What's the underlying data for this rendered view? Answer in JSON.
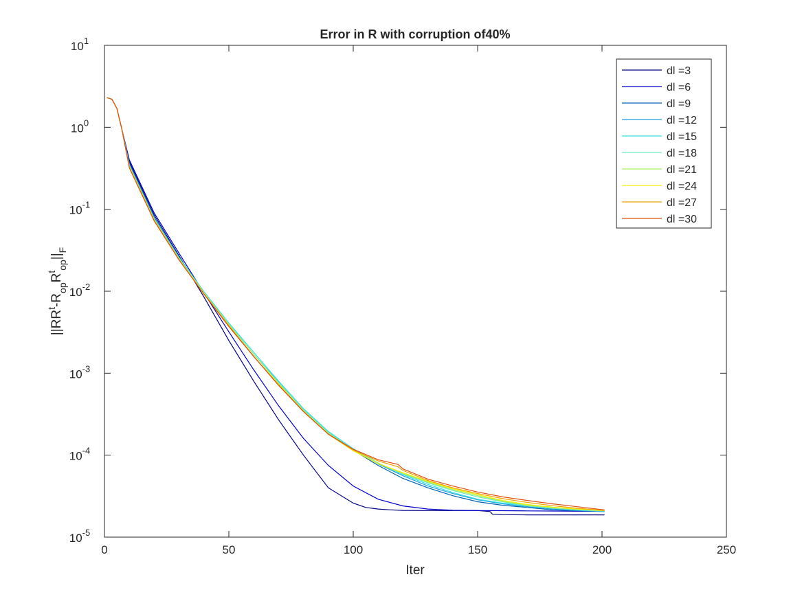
{
  "chart_data": {
    "type": "line",
    "title": "Error in R with corruption of40%",
    "xlabel": "Iter",
    "ylabel": {
      "parts": [
        {
          "t": "||RR",
          "s": "n"
        },
        {
          "t": "t",
          "s": "sup"
        },
        {
          "t": "-R",
          "s": "n"
        },
        {
          "t": "op",
          "s": "sub"
        },
        {
          "t": "R",
          "s": "n"
        },
        {
          "t": "t",
          "s": "sup"
        },
        {
          "t": "op",
          "s": "sub"
        },
        {
          "t": "||",
          "s": "n"
        },
        {
          "t": "F",
          "s": "sub"
        }
      ]
    },
    "xlim": [
      0,
      250
    ],
    "ylim": [
      1e-05,
      10
    ],
    "yscale": "log",
    "grid": false,
    "legend_position": "top-right",
    "xticks": [
      "0",
      "50",
      "100",
      "150",
      "200",
      "250"
    ],
    "yticks": [
      {
        "base": "10",
        "exp": "-5"
      },
      {
        "base": "10",
        "exp": "-4"
      },
      {
        "base": "10",
        "exp": "-3"
      },
      {
        "base": "10",
        "exp": "-2"
      },
      {
        "base": "10",
        "exp": "-1"
      },
      {
        "base": "10",
        "exp": "0"
      },
      {
        "base": "10",
        "exp": "1"
      }
    ],
    "series": [
      {
        "name": "dl =3",
        "color": "#000080",
        "x": [
          1,
          3,
          5,
          7,
          10,
          20,
          30,
          40,
          50,
          60,
          70,
          80,
          90,
          100,
          105,
          110,
          115,
          120,
          130,
          140,
          150,
          155,
          156,
          160,
          170,
          180,
          190,
          201
        ],
        "y": [
          2.3,
          2.2,
          1.7,
          0.95,
          0.38,
          0.085,
          0.027,
          0.0085,
          0.0025,
          0.0008,
          0.00027,
          0.0001,
          4e-05,
          2.6e-05,
          2.3e-05,
          2.2e-05,
          2.15e-05,
          2.12e-05,
          2.11e-05,
          2.11e-05,
          2.11e-05,
          2.05e-05,
          1.9e-05,
          1.88e-05,
          1.87e-05,
          1.87e-05,
          1.87e-05,
          1.87e-05
        ]
      },
      {
        "name": "dl =6",
        "color": "#0000cc",
        "x": [
          1,
          3,
          5,
          7,
          10,
          20,
          30,
          40,
          50,
          60,
          70,
          80,
          90,
          100,
          110,
          120,
          130,
          140,
          150,
          160,
          170,
          180,
          190,
          201
        ],
        "y": [
          2.3,
          2.2,
          1.7,
          0.95,
          0.4,
          0.09,
          0.029,
          0.0095,
          0.0032,
          0.0011,
          0.0004,
          0.00016,
          7.5e-05,
          4.2e-05,
          2.9e-05,
          2.4e-05,
          2.2e-05,
          2.13e-05,
          2.11e-05,
          2.1e-05,
          2.09e-05,
          2.08e-05,
          2.07e-05,
          2.06e-05
        ]
      },
      {
        "name": "dl =9",
        "color": "#0060b0",
        "x": [
          1,
          3,
          5,
          7,
          10,
          20,
          30,
          40,
          50,
          60,
          70,
          80,
          90,
          100,
          110,
          120,
          130,
          140,
          150,
          160,
          170,
          180,
          190,
          201
        ],
        "y": [
          2.3,
          2.2,
          1.7,
          0.95,
          0.36,
          0.08,
          0.026,
          0.0095,
          0.0038,
          0.0016,
          0.00072,
          0.00034,
          0.000185,
          0.000115,
          7.5e-05,
          5.2e-05,
          4e-05,
          3.2e-05,
          2.7e-05,
          2.45e-05,
          2.3e-05,
          2.15e-05,
          2.1e-05,
          2.05e-05
        ]
      },
      {
        "name": "dl =12",
        "color": "#1aa0e0",
        "x": [
          1,
          3,
          5,
          7,
          10,
          20,
          30,
          40,
          50,
          60,
          70,
          80,
          90,
          100,
          110,
          120,
          130,
          140,
          150,
          160,
          170,
          180,
          190,
          201
        ],
        "y": [
          2.3,
          2.2,
          1.7,
          0.95,
          0.35,
          0.078,
          0.026,
          0.0098,
          0.004,
          0.0017,
          0.00078,
          0.00036,
          0.000192,
          0.000118,
          7.8e-05,
          5.6e-05,
          4.2e-05,
          3.4e-05,
          2.85e-05,
          2.55e-05,
          2.35e-05,
          2.2e-05,
          2.12e-05,
          2.05e-05
        ]
      },
      {
        "name": "dl =15",
        "color": "#33e0e8",
        "x": [
          1,
          3,
          5,
          7,
          10,
          20,
          30,
          40,
          50,
          60,
          70,
          80,
          90,
          100,
          110,
          120,
          130,
          140,
          150,
          160,
          170,
          180,
          190,
          201
        ],
        "y": [
          2.3,
          2.2,
          1.7,
          0.95,
          0.345,
          0.077,
          0.0255,
          0.0099,
          0.0041,
          0.0018,
          0.0008,
          0.00037,
          0.000195,
          0.00012,
          8e-05,
          5.8e-05,
          4.4e-05,
          3.5e-05,
          2.9e-05,
          2.6e-05,
          2.4e-05,
          2.25e-05,
          2.15e-05,
          2.07e-05
        ]
      },
      {
        "name": "dl =18",
        "color": "#70e8c0",
        "x": [
          1,
          3,
          5,
          7,
          10,
          20,
          30,
          40,
          50,
          60,
          70,
          80,
          90,
          100,
          110,
          120,
          130,
          140,
          150,
          160,
          170,
          180,
          190,
          201
        ],
        "y": [
          2.3,
          2.2,
          1.7,
          0.95,
          0.34,
          0.076,
          0.025,
          0.0097,
          0.004,
          0.0017,
          0.00077,
          0.00036,
          0.00019,
          0.000118,
          8e-05,
          5.9e-05,
          4.6e-05,
          3.7e-05,
          3.1e-05,
          2.7e-05,
          2.4e-05,
          2.25e-05,
          2.15e-05,
          2.08e-05
        ]
      },
      {
        "name": "dl =21",
        "color": "#a8f060",
        "x": [
          1,
          3,
          5,
          7,
          10,
          20,
          30,
          40,
          50,
          60,
          70,
          80,
          90,
          100,
          110,
          120,
          130,
          140,
          150,
          160,
          170,
          180,
          190,
          201
        ],
        "y": [
          2.3,
          2.2,
          1.7,
          0.95,
          0.335,
          0.075,
          0.0248,
          0.0095,
          0.0039,
          0.0017,
          0.00075,
          0.00035,
          0.000185,
          0.000115,
          7.9e-05,
          6e-05,
          4.7e-05,
          3.8e-05,
          3.2e-05,
          2.75e-05,
          2.45e-05,
          2.3e-05,
          2.18e-05,
          2.1e-05
        ]
      },
      {
        "name": "dl =24",
        "color": "#f0f000",
        "x": [
          1,
          3,
          5,
          7,
          10,
          20,
          30,
          40,
          50,
          60,
          70,
          80,
          90,
          100,
          110,
          120,
          130,
          140,
          150,
          160,
          170,
          180,
          190,
          201
        ],
        "y": [
          2.3,
          2.2,
          1.7,
          0.95,
          0.33,
          0.074,
          0.0245,
          0.0094,
          0.0038,
          0.0016,
          0.00073,
          0.00034,
          0.00018,
          0.000113,
          7.9e-05,
          6.1e-05,
          4.8e-05,
          3.9e-05,
          3.3e-05,
          2.8e-05,
          2.5e-05,
          2.32e-05,
          2.2e-05,
          2.11e-05
        ]
      },
      {
        "name": "dl =27",
        "color": "#f0a000",
        "x": [
          1,
          3,
          5,
          7,
          10,
          20,
          30,
          40,
          50,
          60,
          70,
          80,
          90,
          100,
          110,
          118,
          120,
          130,
          140,
          150,
          160,
          170,
          180,
          190,
          201
        ],
        "y": [
          2.3,
          2.2,
          1.7,
          0.95,
          0.325,
          0.073,
          0.0242,
          0.0093,
          0.0038,
          0.0016,
          0.00072,
          0.00034,
          0.00018,
          0.000115,
          8.5e-05,
          7.2e-05,
          6.5e-05,
          4.9e-05,
          4e-05,
          3.4e-05,
          2.95e-05,
          2.65e-05,
          2.42e-05,
          2.25e-05,
          2.12e-05
        ]
      },
      {
        "name": "dl =30",
        "color": "#e05010",
        "x": [
          1,
          3,
          5,
          7,
          10,
          20,
          30,
          40,
          50,
          60,
          70,
          80,
          90,
          100,
          110,
          118,
          120,
          130,
          140,
          150,
          160,
          170,
          180,
          190,
          201
        ],
        "y": [
          2.3,
          2.2,
          1.7,
          0.95,
          0.32,
          0.072,
          0.024,
          0.0092,
          0.0037,
          0.0016,
          0.00071,
          0.00034,
          0.00018,
          0.000118,
          8.8e-05,
          7.7e-05,
          6.8e-05,
          5.1e-05,
          4.2e-05,
          3.55e-05,
          3.1e-05,
          2.8e-05,
          2.55e-05,
          2.35e-05,
          2.15e-05
        ]
      }
    ]
  }
}
